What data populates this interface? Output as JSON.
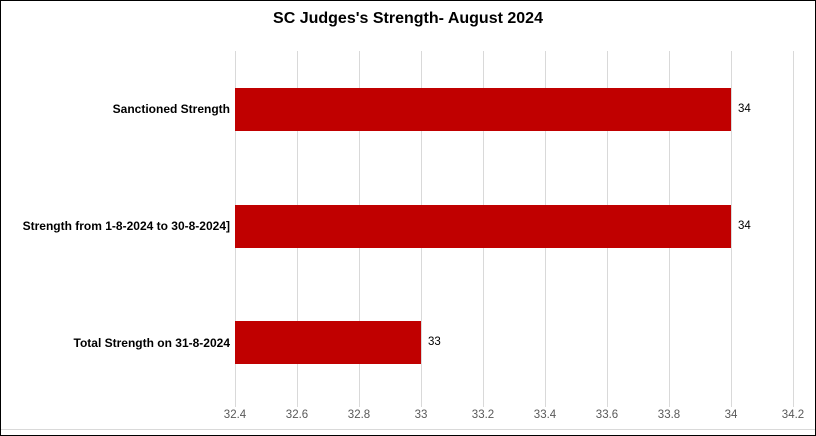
{
  "chart_data": {
    "type": "bar",
    "orientation": "horizontal",
    "title": "SC Judges's Strength- August 2024",
    "categories": [
      "Sanctioned Strength",
      "Strength from 1-8-2024 to 30-8-2024]",
      "Total Strength on 31-8-2024"
    ],
    "values": [
      34,
      34,
      33
    ],
    "value_labels": [
      "34",
      "34",
      "33"
    ],
    "xlim": [
      32.4,
      34.2
    ],
    "xticks": [
      32.4,
      32.6,
      32.8,
      33,
      33.2,
      33.4,
      33.6,
      33.8,
      34,
      34.2
    ],
    "xtick_labels": [
      "32.4",
      "32.6",
      "32.8",
      "33",
      "33.2",
      "33.4",
      "33.6",
      "33.8",
      "34",
      "34.2"
    ],
    "grid": true,
    "legend": "none",
    "colors": {
      "bar": "#c00000",
      "gridline": "#d9d9d9",
      "tick_label": "#595959",
      "title": "#000000",
      "border": "#000000"
    }
  }
}
